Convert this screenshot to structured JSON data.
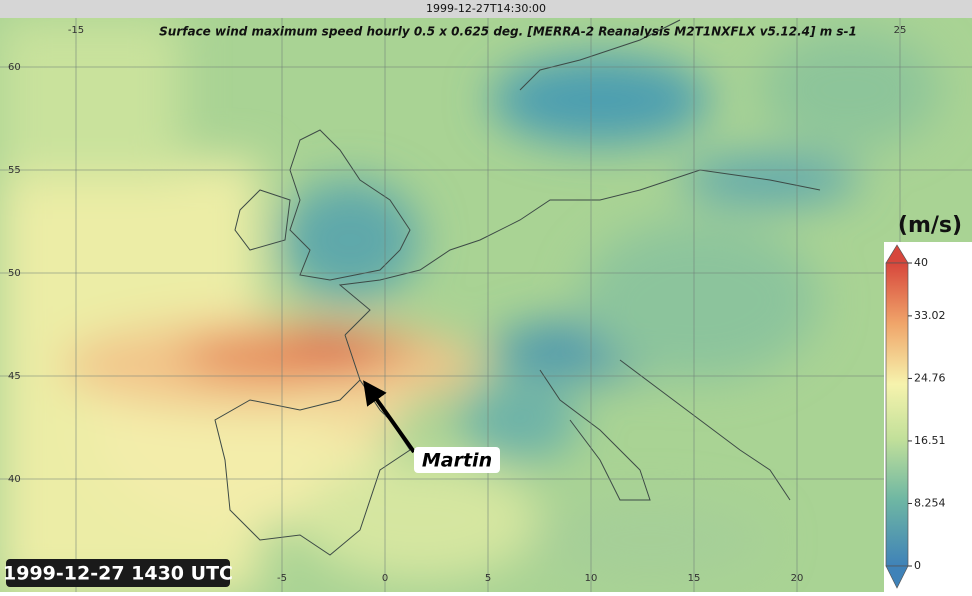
{
  "header": {
    "timestamp": "1999-12-27T14:30:00",
    "title": "Surface wind maximum speed hourly 0.5 x 0.625 deg. [MERRA-2 Reanalysis M2T1NXFLX v5.12.4] m s-1"
  },
  "map": {
    "lon_ticks_top": [
      -15,
      25
    ],
    "lon_ticks_bottom": [
      -5,
      0,
      5,
      10,
      15,
      20
    ],
    "lat_ticks": [
      60,
      55,
      50,
      45,
      40
    ]
  },
  "annotation": {
    "label": "Martin"
  },
  "caption": "1999-12-27 1430 UTC",
  "colorbar": {
    "unit": "(m/s)",
    "lim": [
      0,
      40
    ],
    "ticks": [
      0,
      8.254,
      16.51,
      24.76,
      33.02,
      40
    ]
  }
}
